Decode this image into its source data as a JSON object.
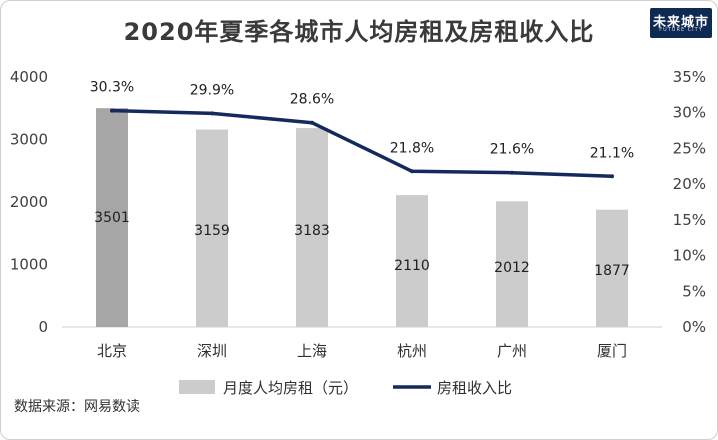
{
  "title": "2020年夏季各城市人均房租及房租收入比",
  "logo": {
    "main": "未来城市",
    "sub": "FUTURE CITY"
  },
  "source": "数据来源：网易数读",
  "chart_data": {
    "type": "bar",
    "categories": [
      "北京",
      "深圳",
      "上海",
      "杭州",
      "广州",
      "厦门"
    ],
    "series": [
      {
        "name": "月度人均房租（元）",
        "type": "bar",
        "axis": "left",
        "values": [
          3501,
          3159,
          3183,
          2110,
          2012,
          1877
        ],
        "labels": [
          "3501",
          "3159",
          "3183",
          "2110",
          "2012",
          "1877"
        ]
      },
      {
        "name": "房租收入比",
        "type": "line",
        "axis": "right",
        "values": [
          30.3,
          29.9,
          28.6,
          21.8,
          21.6,
          21.1
        ],
        "labels": [
          "30.3%",
          "29.9%",
          "28.6%",
          "21.8%",
          "21.6%",
          "21.1%"
        ]
      }
    ],
    "y_left": {
      "ylim": [
        0,
        4000
      ],
      "ticks": [
        "0",
        "1000",
        "2000",
        "3000",
        "4000"
      ]
    },
    "y_right": {
      "ylim": [
        0,
        35
      ],
      "ticks": [
        "0%",
        "5%",
        "10%",
        "15%",
        "20%",
        "25%",
        "30%",
        "35%"
      ]
    },
    "grid": false,
    "legend_position": "bottom",
    "colors": {
      "bar": "#cccccc",
      "bar_highlight": "#a6a6a6",
      "line": "#142a5c",
      "axis": "#d0d0d0"
    }
  }
}
